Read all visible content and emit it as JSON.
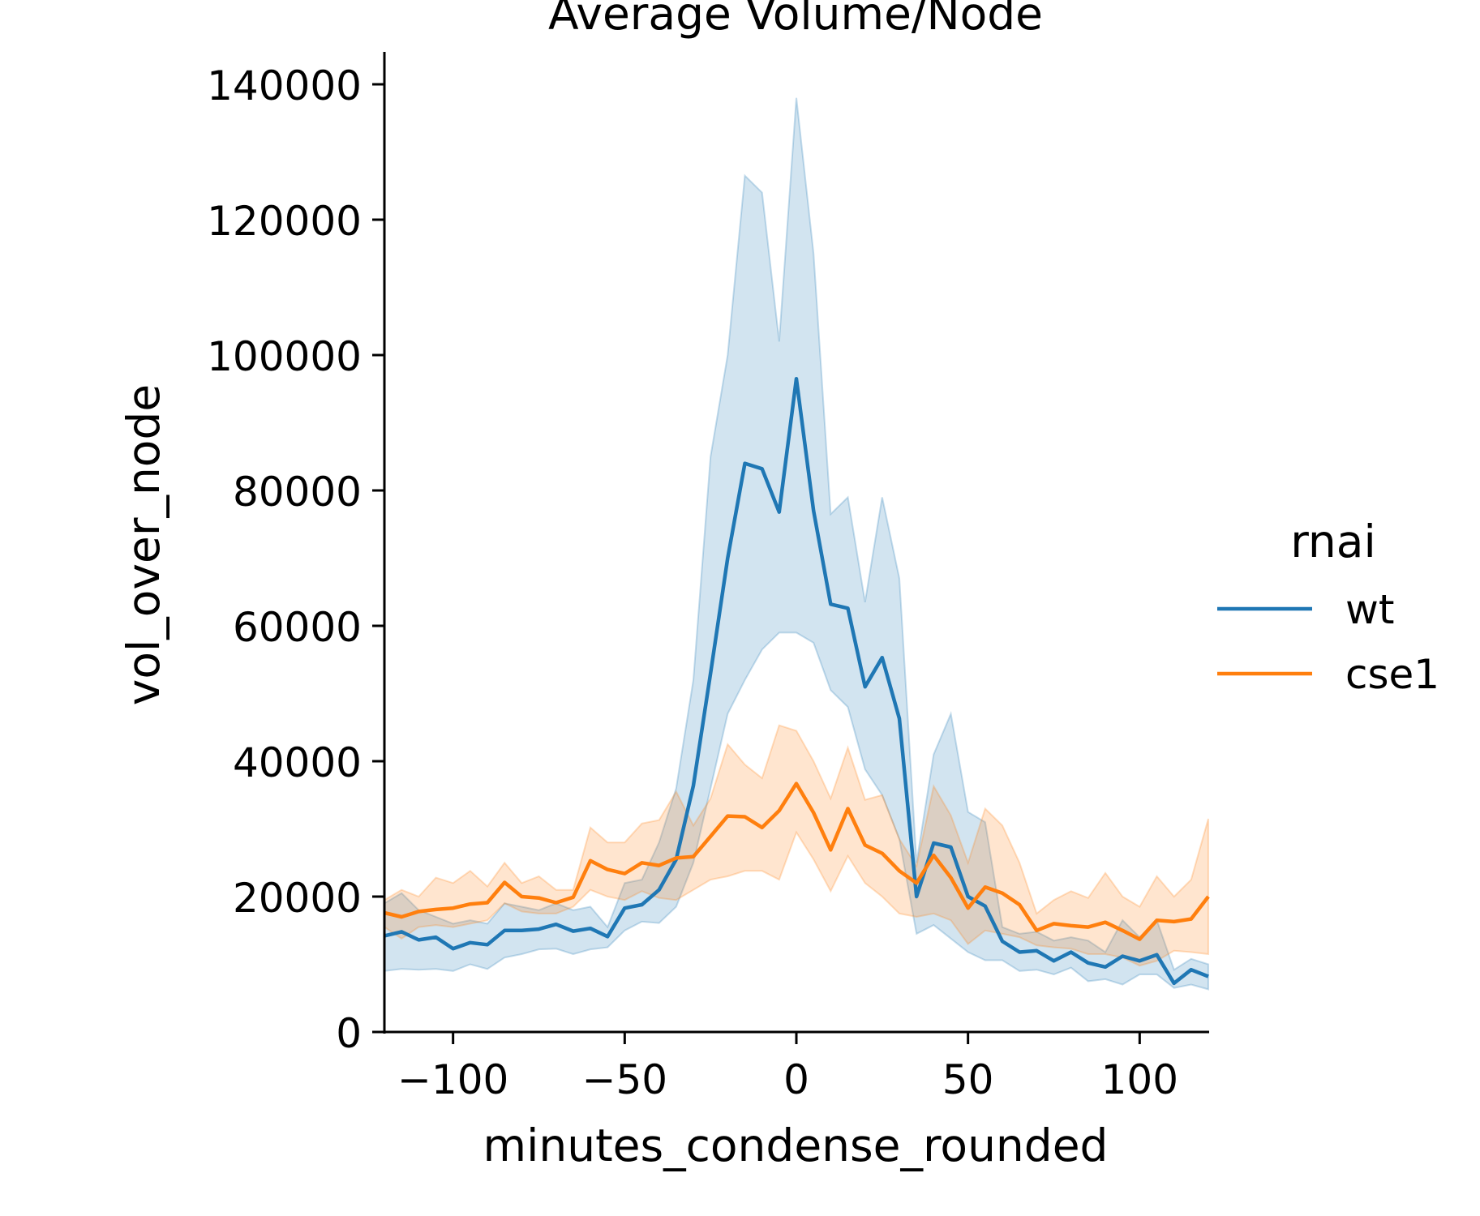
{
  "chart_data": {
    "type": "line",
    "title": "Average Volume/Node",
    "xlabel": "minutes_condense_rounded",
    "ylabel": "vol_over_node",
    "xlim": [
      -120,
      120
    ],
    "ylim": [
      0,
      140000
    ],
    "xticks": [
      -100,
      -50,
      0,
      50,
      100
    ],
    "xtick_labels": [
      "−100",
      "−50",
      "0",
      "50",
      "100"
    ],
    "yticks": [
      0,
      20000,
      40000,
      60000,
      80000,
      100000,
      120000,
      140000
    ],
    "ytick_labels": [
      "0",
      "20000",
      "40000",
      "60000",
      "80000",
      "100000",
      "120000",
      "140000"
    ],
    "grid": false,
    "legend": {
      "title": "rnai",
      "placement": "right"
    },
    "x": [
      -120,
      -115,
      -110,
      -105,
      -100,
      -95,
      -90,
      -85,
      -80,
      -75,
      -70,
      -65,
      -60,
      -55,
      -50,
      -45,
      -40,
      -35,
      -30,
      -25,
      -20,
      -15,
      -10,
      -5,
      0,
      5,
      10,
      15,
      20,
      25,
      30,
      35,
      40,
      45,
      50,
      55,
      60,
      65,
      70,
      75,
      80,
      85,
      90,
      95,
      100,
      105,
      110,
      115,
      120
    ],
    "series": [
      {
        "name": "wt",
        "color": "#1f77b4",
        "values": [
          14200,
          14800,
          13600,
          14000,
          12300,
          13200,
          12900,
          15000,
          15000,
          15200,
          15900,
          14900,
          15300,
          14100,
          18300,
          18800,
          21000,
          25500,
          36400,
          53000,
          70000,
          84000,
          83200,
          76800,
          96500,
          77000,
          63200,
          62600,
          51000,
          55300,
          46300,
          20000,
          27900,
          27300,
          20000,
          18600,
          13400,
          11800,
          12000,
          10500,
          11800,
          10200,
          9600,
          11200,
          10500,
          11400,
          7200,
          9200,
          8200
        ],
        "ci_upper": [
          19000,
          20500,
          18000,
          17000,
          16000,
          16500,
          16000,
          19000,
          18500,
          18000,
          19000,
          18000,
          18500,
          15500,
          22000,
          22500,
          28000,
          36000,
          52000,
          85000,
          100000,
          126500,
          124000,
          102000,
          138000,
          115000,
          76500,
          79000,
          63500,
          79000,
          67000,
          25000,
          41000,
          47000,
          32500,
          31000,
          15500,
          14500,
          14800,
          13500,
          14000,
          13500,
          11800,
          16500,
          14000,
          16500,
          9200,
          10800,
          10000
        ],
        "ci_lower": [
          9000,
          9300,
          9200,
          9300,
          9000,
          10000,
          9300,
          11000,
          11500,
          12200,
          12300,
          11500,
          12200,
          12500,
          15000,
          16300,
          16100,
          18500,
          25000,
          36000,
          47000,
          52000,
          56500,
          59000,
          59000,
          57500,
          50500,
          48000,
          38800,
          35000,
          28500,
          14500,
          15800,
          13800,
          11800,
          10600,
          10600,
          9000,
          9200,
          8500,
          9500,
          7500,
          7800,
          7000,
          8500,
          8500,
          6500,
          7000,
          6300
        ]
      },
      {
        "name": "cse1",
        "color": "#ff7f0e",
        "values": [
          17600,
          17000,
          17800,
          18100,
          18300,
          18900,
          19100,
          22100,
          20000,
          19800,
          19100,
          19900,
          25300,
          24000,
          23400,
          25000,
          24600,
          25700,
          25900,
          28900,
          31900,
          31800,
          30200,
          32700,
          36700,
          32400,
          26900,
          33000,
          27600,
          26400,
          23800,
          22000,
          26100,
          22800,
          18300,
          21400,
          20500,
          18800,
          15000,
          16000,
          15700,
          15500,
          16200,
          15000,
          13700,
          16500,
          16300,
          16700,
          20000
        ],
        "ci_upper": [
          19500,
          21000,
          20000,
          22800,
          22000,
          23800,
          21500,
          25000,
          22000,
          23000,
          21000,
          21000,
          30200,
          28000,
          28000,
          30800,
          31300,
          35500,
          30500,
          34500,
          42500,
          39500,
          37500,
          45300,
          44500,
          40000,
          34500,
          42000,
          34300,
          35000,
          28500,
          24500,
          36300,
          32000,
          25000,
          33000,
          30500,
          25000,
          17500,
          19500,
          20800,
          19800,
          23500,
          20000,
          18500,
          23000,
          20000,
          22500,
          31500
        ],
        "ci_lower": [
          15500,
          13800,
          15500,
          15800,
          15500,
          16000,
          16500,
          19000,
          17800,
          17500,
          17500,
          18500,
          21000,
          20000,
          19500,
          20800,
          19800,
          19500,
          21000,
          22500,
          23000,
          23800,
          23800,
          22500,
          29500,
          25500,
          20800,
          26000,
          22000,
          20000,
          17500,
          17000,
          17500,
          16500,
          13000,
          15000,
          14500,
          14000,
          12800,
          12500,
          12300,
          11500,
          11500,
          11000,
          9800,
          10500,
          12000,
          11800,
          11500
        ]
      }
    ]
  }
}
